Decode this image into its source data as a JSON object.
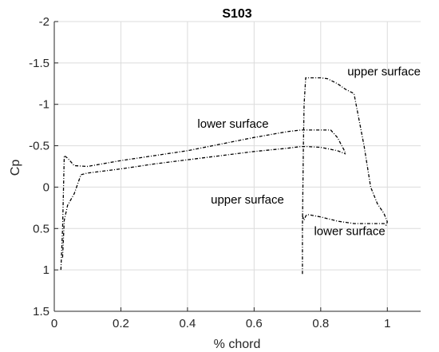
{
  "chart_data": {
    "type": "line",
    "title": "S103",
    "xlabel": "% chord",
    "ylabel": "Cp",
    "xlim": [
      0,
      1.1
    ],
    "ylim": [
      -2,
      1.5
    ],
    "y_reversed": true,
    "grid": true,
    "x_ticks": [
      0,
      0.2,
      0.4,
      0.6,
      0.8,
      1
    ],
    "x_tick_labels": [
      "0",
      "0.2",
      "0.4",
      "0.6",
      "0.8",
      "1"
    ],
    "y_ticks": [
      -2,
      -1.5,
      -1,
      -0.5,
      0,
      0.5,
      1,
      1.5
    ],
    "y_tick_labels": [
      "-2",
      "-1.5",
      "-1",
      "-0.5",
      "0",
      "0.5",
      "1",
      "1.5"
    ],
    "line_color": "#000000",
    "line_style": "dash-dot",
    "series": [
      {
        "x": [
          0.02,
          0.025,
          0.03,
          0.04,
          0.06,
          0.1,
          0.2,
          0.3,
          0.4,
          0.5,
          0.6,
          0.7,
          0.74,
          0.8,
          0.83,
          0.85,
          0.87,
          0.875
        ],
        "y": [
          1.0,
          0.5,
          -0.38,
          -0.35,
          -0.26,
          -0.25,
          -0.32,
          -0.38,
          -0.44,
          -0.52,
          -0.6,
          -0.67,
          -0.69,
          -0.69,
          -0.69,
          -0.6,
          -0.45,
          -0.4
        ]
      },
      {
        "x": [
          0.025,
          0.03,
          0.04,
          0.06,
          0.08,
          0.1,
          0.2,
          0.3,
          0.4,
          0.5,
          0.6,
          0.7,
          0.74,
          0.76,
          0.8,
          0.85,
          0.875
        ],
        "y": [
          0.85,
          0.4,
          0.22,
          0.08,
          -0.15,
          -0.17,
          -0.22,
          -0.28,
          -0.33,
          -0.38,
          -0.43,
          -0.47,
          -0.49,
          -0.49,
          -0.48,
          -0.44,
          -0.4
        ]
      },
      {
        "x": [
          0.745,
          0.745,
          0.748,
          0.75,
          0.755,
          0.8,
          0.82,
          0.85,
          0.875,
          0.9,
          0.93,
          0.95,
          0.97,
          0.99,
          1.0,
          0.995
        ],
        "y": [
          1.05,
          0.5,
          -0.5,
          -1.0,
          -1.32,
          -1.32,
          -1.31,
          -1.25,
          -1.18,
          -1.13,
          -0.5,
          0.0,
          0.2,
          0.32,
          0.42,
          0.47
        ]
      },
      {
        "x": [
          0.745,
          0.75,
          0.755,
          0.76,
          0.8,
          0.85,
          0.9,
          0.95,
          0.99,
          1.0
        ],
        "y": [
          0.35,
          0.4,
          0.35,
          0.33,
          0.36,
          0.41,
          0.44,
          0.44,
          0.44,
          0.47
        ]
      }
    ],
    "annotations": [
      {
        "text": "upper surface",
        "x": 0.88,
        "y": -1.35
      },
      {
        "text": "lower surface",
        "x": 0.43,
        "y": -0.72
      },
      {
        "text": "upper surface",
        "x": 0.47,
        "y": 0.2
      },
      {
        "text": "lower surface",
        "x": 0.78,
        "y": 0.58
      }
    ]
  }
}
